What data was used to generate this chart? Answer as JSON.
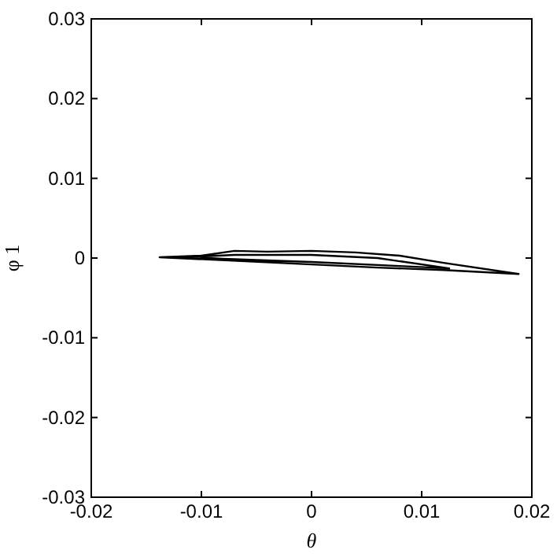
{
  "chart_data": {
    "type": "line",
    "xlabel": "θ",
    "ylabel": "φ 1",
    "xlim": [
      -0.02,
      0.02
    ],
    "ylim": [
      -0.03,
      0.03
    ],
    "xticks": [
      -0.02,
      -0.01,
      0,
      0.01,
      0.02
    ],
    "yticks": [
      -0.03,
      -0.02,
      -0.01,
      0,
      0.01,
      0.02,
      0.03
    ],
    "grid": false,
    "marker": "none",
    "line_style": "solid",
    "series": [
      {
        "color": "#000000",
        "x": [
          -0.0138,
          -0.01,
          -0.007,
          -0.004,
          0,
          0.004,
          0.008,
          0.012,
          0.0188,
          0.012,
          0.006,
          0,
          -0.006,
          -0.0138,
          -0.01,
          -0.007,
          0,
          0.006,
          0.0125,
          0.008,
          0,
          -0.008,
          -0.011
        ],
        "values": [
          0.0001,
          0.0003,
          0.0009,
          0.0008,
          0.0009,
          0.0007,
          0.0003,
          -0.0006,
          -0.002,
          -0.0015,
          -0.0012,
          -0.0008,
          -0.0004,
          0.0001,
          0.0002,
          0.0004,
          0.0004,
          0,
          -0.0013,
          -0.001,
          -0.0005,
          -0.0001,
          0.0001
        ]
      }
    ]
  }
}
